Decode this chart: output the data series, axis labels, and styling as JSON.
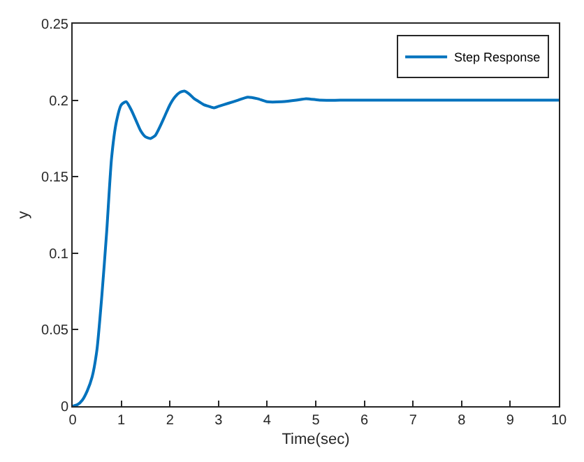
{
  "chart_data": {
    "type": "line",
    "xlabel": "Time(sec)",
    "ylabel": "y",
    "legend": "top right",
    "marker": "none",
    "line_style": "solid",
    "xlim": [
      0,
      10
    ],
    "xticks": [
      0,
      1,
      2,
      3,
      4,
      5,
      6,
      7,
      8,
      9,
      10
    ],
    "ylim": [
      0,
      0.25
    ],
    "yticks": [
      0,
      0.05,
      0.1,
      0.15,
      0.2,
      0.25
    ],
    "series": [
      {
        "name": "Step Response",
        "color": "#0072bd",
        "x": [
          0,
          0.1,
          0.2,
          0.3,
          0.4,
          0.5,
          0.6,
          0.7,
          0.8,
          0.9,
          1.0,
          1.1,
          1.2,
          1.3,
          1.4,
          1.5,
          1.6,
          1.7,
          1.8,
          1.9,
          2.0,
          2.1,
          2.2,
          2.3,
          2.4,
          2.5,
          2.6,
          2.7,
          2.8,
          2.9,
          3.0,
          3.2,
          3.4,
          3.6,
          3.8,
          4.0,
          4.3,
          4.6,
          4.8,
          5.1,
          5.5,
          6,
          7,
          8,
          9,
          10
        ],
        "values": [
          0,
          0.001,
          0.004,
          0.01,
          0.019,
          0.037,
          0.072,
          0.114,
          0.162,
          0.186,
          0.197,
          0.199,
          0.194,
          0.187,
          0.18,
          0.176,
          0.175,
          0.177,
          0.183,
          0.19,
          0.197,
          0.202,
          0.205,
          0.206,
          0.204,
          0.201,
          0.199,
          0.197,
          0.196,
          0.195,
          0.196,
          0.198,
          0.2,
          0.202,
          0.201,
          0.199,
          0.199,
          0.2,
          0.201,
          0.2,
          0.2,
          0.2,
          0.2,
          0.2,
          0.2,
          0.2
        ]
      }
    ]
  }
}
